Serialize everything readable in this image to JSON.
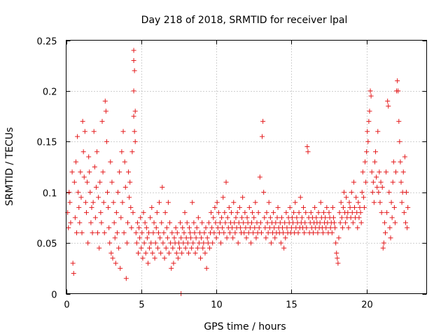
{
  "chart_data": {
    "type": "scatter",
    "title": "Day 218 of 2018, SRMTID for receiver lpal",
    "xlabel": "GPS time / hours",
    "ylabel": "SRMTID / TECUs",
    "xlim": [
      0,
      24
    ],
    "ylim": [
      0,
      0.25
    ],
    "x_ticks": [
      0,
      5,
      10,
      15,
      20
    ],
    "x_tick_labels": [
      "0",
      "5",
      "10",
      "15",
      "20"
    ],
    "y_ticks": [
      0,
      0.05,
      0.1,
      0.15,
      0.2,
      0.25
    ],
    "y_tick_labels": [
      "0",
      "0.05",
      "0.1",
      "0.15",
      "0.2",
      "0.25"
    ],
    "grid": true,
    "marker": "+",
    "color": "#e41a1c",
    "series": [
      {
        "name": "SRMTID",
        "x": [
          0.1,
          0.15,
          0.2,
          0.25,
          0.3,
          0.4,
          0.45,
          0.5,
          0.55,
          0.6,
          0.65,
          0.7,
          0.75,
          0.8,
          0.85,
          0.9,
          0.95,
          1.0,
          1.05,
          1.1,
          1.15,
          1.2,
          1.25,
          1.3,
          1.35,
          1.4,
          1.45,
          1.5,
          1.55,
          1.6,
          1.65,
          1.7,
          1.75,
          1.8,
          1.85,
          1.9,
          1.95,
          2.0,
          2.05,
          2.1,
          2.15,
          2.2,
          2.25,
          2.3,
          2.35,
          2.4,
          2.45,
          2.5,
          2.55,
          2.6,
          2.65,
          2.7,
          2.75,
          2.8,
          2.85,
          2.9,
          2.95,
          3.0,
          3.05,
          3.1,
          3.15,
          3.2,
          3.25,
          3.3,
          3.35,
          3.4,
          3.45,
          3.5,
          3.55,
          3.6,
          3.65,
          3.7,
          3.75,
          3.8,
          3.85,
          3.9,
          3.95,
          4.0,
          4.05,
          4.1,
          4.15,
          4.2,
          4.25,
          4.3,
          4.35,
          4.4,
          4.45,
          4.5,
          4.5,
          4.5,
          4.5,
          4.55,
          4.55,
          4.6,
          4.6,
          4.65,
          4.7,
          4.75,
          4.8,
          4.85,
          4.9,
          4.95,
          5.0,
          5.05,
          5.1,
          5.15,
          5.2,
          5.25,
          5.3,
          5.35,
          5.4,
          5.45,
          5.5,
          5.55,
          5.6,
          5.65,
          5.7,
          5.75,
          5.8,
          5.85,
          5.9,
          5.95,
          6.0,
          6.05,
          6.1,
          6.15,
          6.2,
          6.25,
          6.3,
          6.35,
          6.4,
          6.45,
          6.5,
          6.55,
          6.6,
          6.65,
          6.7,
          6.75,
          6.8,
          6.85,
          6.9,
          6.95,
          7.0,
          7.05,
          7.1,
          7.15,
          7.2,
          7.25,
          7.3,
          7.35,
          7.4,
          7.45,
          7.5,
          7.55,
          7.6,
          7.65,
          7.7,
          7.75,
          7.8,
          7.85,
          7.9,
          7.95,
          8.0,
          8.05,
          8.1,
          8.15,
          8.2,
          8.25,
          8.3,
          8.35,
          8.4,
          8.45,
          8.5,
          8.55,
          8.6,
          8.65,
          8.7,
          8.75,
          8.8,
          8.85,
          8.9,
          8.95,
          9.0,
          9.05,
          9.1,
          9.15,
          9.2,
          9.25,
          9.3,
          9.35,
          9.4,
          9.45,
          9.5,
          9.55,
          9.6,
          9.65,
          9.7,
          9.75,
          9.8,
          9.85,
          9.9,
          9.95,
          10.0,
          10.05,
          10.1,
          10.15,
          10.2,
          10.25,
          10.3,
          10.35,
          10.4,
          10.45,
          10.5,
          10.55,
          10.6,
          10.65,
          10.7,
          10.75,
          10.8,
          10.85,
          10.9,
          10.95,
          11.0,
          11.05,
          11.1,
          11.15,
          11.2,
          11.25,
          11.3,
          11.35,
          11.4,
          11.45,
          11.5,
          11.55,
          11.6,
          11.65,
          11.7,
          11.75,
          11.8,
          11.85,
          11.9,
          11.95,
          12.0,
          12.05,
          12.1,
          12.15,
          12.2,
          12.25,
          12.3,
          12.35,
          12.4,
          12.45,
          12.5,
          12.55,
          12.6,
          12.65,
          12.7,
          12.75,
          12.8,
          12.85,
          12.9,
          12.95,
          13.0,
          13.05,
          13.1,
          13.15,
          13.2,
          13.25,
          13.3,
          13.35,
          13.4,
          13.45,
          13.5,
          13.55,
          13.6,
          13.65,
          13.7,
          13.75,
          13.8,
          13.85,
          13.9,
          13.95,
          14.0,
          14.05,
          14.1,
          14.15,
          14.2,
          14.25,
          14.3,
          14.35,
          14.4,
          14.45,
          14.5,
          14.55,
          14.6,
          14.65,
          14.7,
          14.75,
          14.8,
          14.85,
          14.9,
          14.95,
          15.0,
          15.05,
          15.1,
          15.15,
          15.2,
          15.25,
          15.3,
          15.35,
          15.4,
          15.45,
          15.5,
          15.55,
          15.6,
          15.65,
          15.7,
          15.75,
          15.8,
          15.85,
          15.9,
          15.95,
          16.0,
          16.05,
          16.1,
          16.15,
          16.2,
          16.25,
          16.3,
          16.35,
          16.4,
          16.45,
          16.5,
          16.55,
          16.6,
          16.65,
          16.7,
          16.75,
          16.8,
          16.85,
          16.9,
          16.95,
          17.0,
          17.05,
          17.1,
          17.15,
          17.2,
          17.25,
          17.3,
          17.35,
          17.4,
          17.45,
          17.5,
          17.55,
          17.6,
          17.65,
          17.7,
          17.75,
          17.8,
          17.85,
          17.9,
          17.95,
          18.0,
          18.05,
          18.1,
          18.15,
          18.2,
          18.25,
          18.3,
          18.35,
          18.4,
          18.45,
          18.5,
          18.55,
          18.6,
          18.65,
          18.7,
          18.75,
          18.8,
          18.85,
          18.9,
          18.95,
          19.0,
          19.05,
          19.1,
          19.15,
          19.2,
          19.25,
          19.3,
          19.35,
          19.4,
          19.45,
          19.5,
          19.55,
          19.6,
          19.65,
          19.7,
          19.75,
          19.8,
          19.85,
          19.9,
          19.95,
          20.0,
          20.05,
          20.1,
          20.15,
          20.2,
          20.25,
          20.3,
          20.35,
          20.4,
          20.45,
          20.5,
          20.55,
          20.6,
          20.65,
          20.7,
          20.75,
          20.8,
          20.85,
          20.9,
          20.95,
          21.0,
          21.05,
          21.1,
          21.15,
          21.2,
          21.25,
          21.3,
          21.35,
          21.4,
          21.45,
          21.5,
          21.55,
          21.6,
          21.65,
          21.7,
          21.75,
          21.8,
          21.85,
          21.9,
          21.95,
          22.0,
          22.05,
          22.1,
          22.15,
          22.2,
          22.25,
          22.3,
          22.35,
          22.4,
          22.45,
          22.5,
          22.55,
          22.6,
          22.65,
          22.7,
          22.75,
          7.65
        ],
        "y": [
          0.08,
          0.065,
          0.1,
          0.09,
          0.07,
          0.12,
          0.03,
          0.02,
          0.11,
          0.075,
          0.13,
          0.06,
          0.155,
          0.1,
          0.085,
          0.07,
          0.12,
          0.095,
          0.06,
          0.17,
          0.14,
          0.115,
          0.16,
          0.09,
          0.08,
          0.11,
          0.05,
          0.135,
          0.12,
          0.1,
          0.07,
          0.085,
          0.06,
          0.09,
          0.16,
          0.125,
          0.075,
          0.105,
          0.14,
          0.06,
          0.095,
          0.045,
          0.11,
          0.08,
          0.07,
          0.17,
          0.12,
          0.09,
          0.06,
          0.19,
          0.18,
          0.15,
          0.1,
          0.085,
          0.065,
          0.05,
          0.13,
          0.04,
          0.11,
          0.035,
          0.09,
          0.07,
          0.055,
          0.03,
          0.08,
          0.06,
          0.1,
          0.045,
          0.12,
          0.025,
          0.075,
          0.14,
          0.09,
          0.16,
          0.06,
          0.13,
          0.105,
          0.015,
          0.05,
          0.07,
          0.12,
          0.095,
          0.11,
          0.085,
          0.065,
          0.14,
          0.08,
          0.24,
          0.23,
          0.175,
          0.2,
          0.22,
          0.16,
          0.18,
          0.15,
          0.06,
          0.05,
          0.07,
          0.04,
          0.065,
          0.055,
          0.075,
          0.045,
          0.06,
          0.035,
          0.08,
          0.05,
          0.07,
          0.04,
          0.065,
          0.055,
          0.03,
          0.06,
          0.045,
          0.075,
          0.05,
          0.085,
          0.04,
          0.06,
          0.07,
          0.035,
          0.05,
          0.065,
          0.08,
          0.045,
          0.06,
          0.09,
          0.055,
          0.04,
          0.07,
          0.105,
          0.05,
          0.06,
          0.035,
          0.08,
          0.045,
          0.065,
          0.055,
          0.09,
          0.04,
          0.07,
          0.05,
          0.025,
          0.06,
          0.045,
          0.03,
          0.055,
          0.05,
          0.065,
          0.04,
          0.06,
          0.035,
          0.05,
          0.045,
          0.07,
          0.055,
          0.04,
          0.065,
          0.05,
          0.06,
          0.08,
          0.045,
          0.055,
          0.07,
          0.05,
          0.04,
          0.065,
          0.06,
          0.055,
          0.045,
          0.09,
          0.05,
          0.07,
          0.06,
          0.04,
          0.055,
          0.065,
          0.045,
          0.075,
          0.05,
          0.06,
          0.035,
          0.055,
          0.07,
          0.045,
          0.05,
          0.06,
          0.04,
          0.065,
          0.025,
          0.055,
          0.05,
          0.07,
          0.045,
          0.06,
          0.08,
          0.065,
          0.05,
          0.075,
          0.06,
          0.085,
          0.07,
          0.055,
          0.09,
          0.065,
          0.08,
          0.06,
          0.07,
          0.05,
          0.075,
          0.065,
          0.095,
          0.06,
          0.08,
          0.07,
          0.11,
          0.055,
          0.075,
          0.065,
          0.085,
          0.06,
          0.07,
          0.08,
          0.065,
          0.055,
          0.09,
          0.07,
          0.06,
          0.075,
          0.065,
          0.08,
          0.05,
          0.07,
          0.085,
          0.065,
          0.06,
          0.075,
          0.095,
          0.07,
          0.06,
          0.08,
          0.065,
          0.055,
          0.075,
          0.07,
          0.06,
          0.085,
          0.065,
          0.05,
          0.07,
          0.08,
          0.06,
          0.075,
          0.065,
          0.09,
          0.055,
          0.07,
          0.06,
          0.08,
          0.065,
          0.115,
          0.07,
          0.06,
          0.155,
          0.17,
          0.1,
          0.075,
          0.065,
          0.055,
          0.08,
          0.07,
          0.06,
          0.09,
          0.065,
          0.075,
          0.05,
          0.07,
          0.06,
          0.08,
          0.065,
          0.055,
          0.07,
          0.06,
          0.075,
          0.085,
          0.065,
          0.06,
          0.07,
          0.05,
          0.075,
          0.065,
          0.06,
          0.045,
          0.07,
          0.055,
          0.08,
          0.065,
          0.06,
          0.075,
          0.07,
          0.085,
          0.06,
          0.065,
          0.075,
          0.07,
          0.08,
          0.06,
          0.09,
          0.065,
          0.075,
          0.07,
          0.06,
          0.08,
          0.065,
          0.095,
          0.07,
          0.075,
          0.065,
          0.085,
          0.06,
          0.07,
          0.08,
          0.065,
          0.145,
          0.14,
          0.075,
          0.06,
          0.07,
          0.08,
          0.065,
          0.075,
          0.06,
          0.07,
          0.085,
          0.065,
          0.075,
          0.07,
          0.06,
          0.08,
          0.065,
          0.07,
          0.09,
          0.075,
          0.065,
          0.06,
          0.08,
          0.07,
          0.075,
          0.065,
          0.085,
          0.07,
          0.06,
          0.08,
          0.075,
          0.065,
          0.07,
          0.06,
          0.085,
          0.075,
          0.07,
          0.065,
          0.05,
          0.04,
          0.035,
          0.03,
          0.055,
          0.08,
          0.07,
          0.09,
          0.075,
          0.065,
          0.085,
          0.1,
          0.08,
          0.07,
          0.095,
          0.075,
          0.08,
          0.065,
          0.09,
          0.085,
          0.075,
          0.1,
          0.08,
          0.07,
          0.11,
          0.085,
          0.075,
          0.095,
          0.08,
          0.065,
          0.09,
          0.075,
          0.085,
          0.08,
          0.07,
          0.1,
          0.12,
          0.095,
          0.085,
          0.13,
          0.11,
          0.14,
          0.16,
          0.15,
          0.17,
          0.18,
          0.2,
          0.195,
          0.12,
          0.1,
          0.11,
          0.09,
          0.13,
          0.14,
          0.115,
          0.105,
          0.16,
          0.1,
          0.12,
          0.09,
          0.11,
          0.08,
          0.105,
          0.045,
          0.05,
          0.07,
          0.06,
          0.12,
          0.08,
          0.19,
          0.185,
          0.1,
          0.065,
          0.055,
          0.09,
          0.075,
          0.11,
          0.13,
          0.085,
          0.07,
          0.12,
          0.2,
          0.21,
          0.2,
          0.17,
          0.15,
          0.13,
          0.11,
          0.09,
          0.1,
          0.12,
          0.08,
          0.135,
          0.07,
          0.1,
          0.065,
          0.085,
          0.0
        ]
      }
    ]
  }
}
